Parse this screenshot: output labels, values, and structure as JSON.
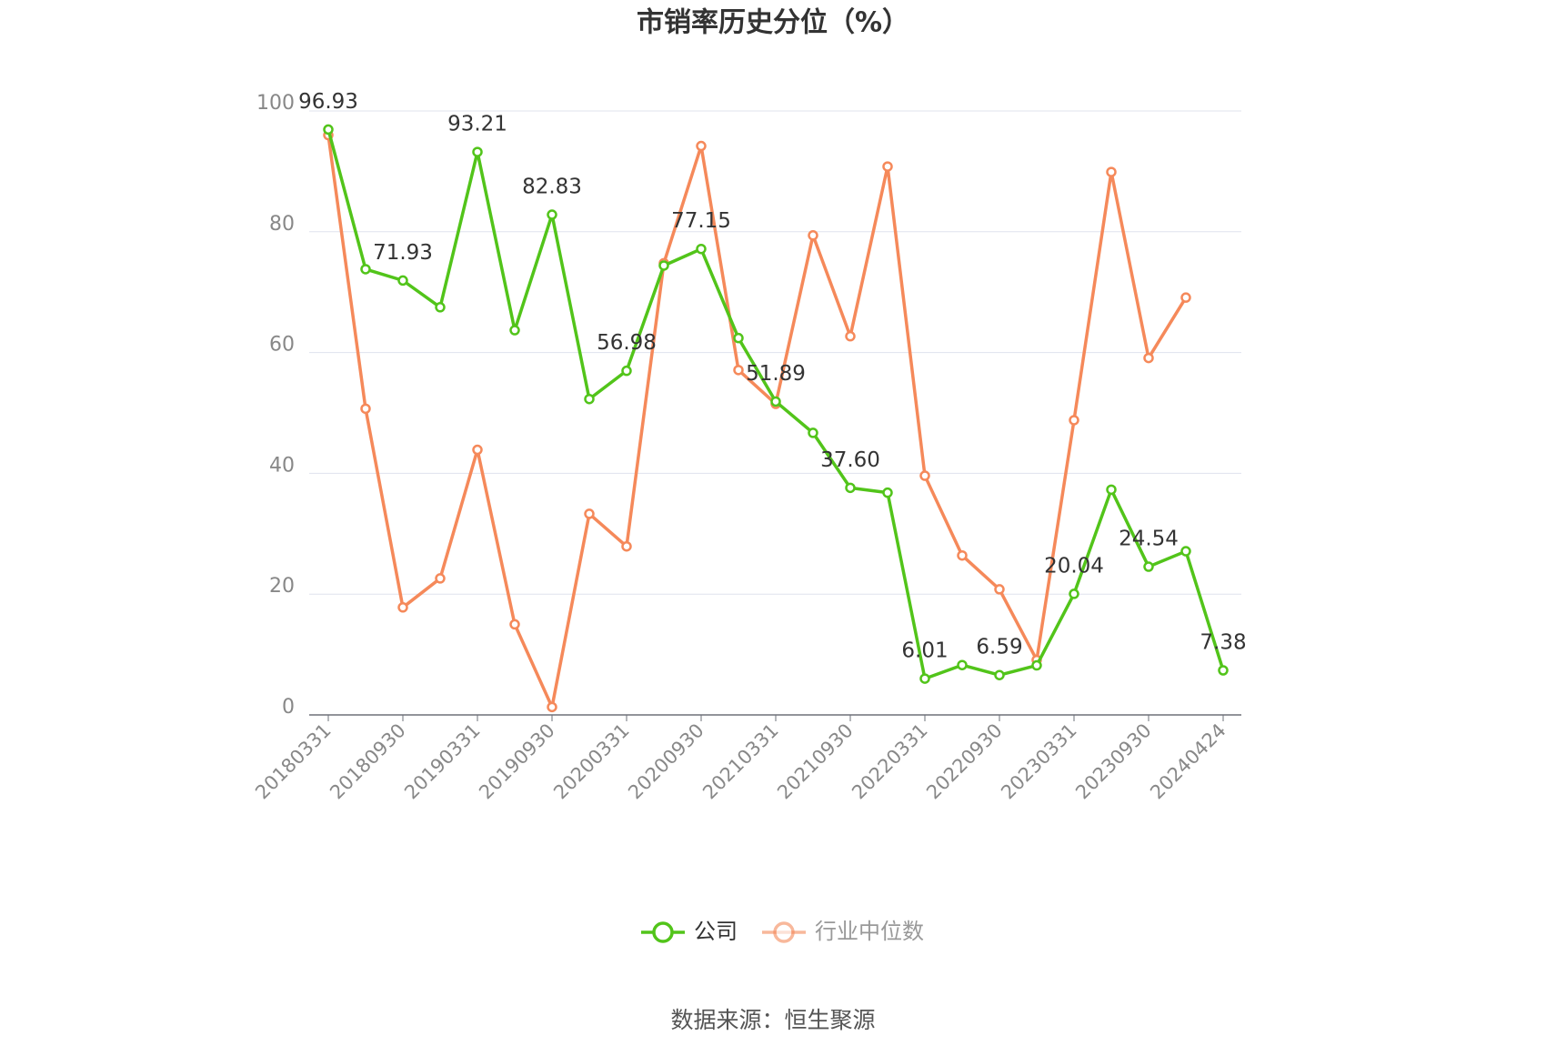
{
  "chart_data": {
    "type": "line",
    "title": "市销率历史分位（%）",
    "source": "数据来源：恒生聚源",
    "categories": [
      "20180331",
      null,
      "20180930",
      null,
      "20190331",
      null,
      "20190930",
      null,
      "20200331",
      null,
      "20200930",
      null,
      "20210331",
      null,
      "20210930",
      null,
      "20220331",
      null,
      "20220930",
      null,
      "20230331",
      null,
      "20230930",
      null,
      "20240424"
    ],
    "series": [
      {
        "name": "公司",
        "color": "#52c41a",
        "values": [
          96.93,
          73.8,
          71.93,
          67.5,
          93.21,
          63.7,
          82.83,
          52.3,
          56.98,
          74.4,
          77.15,
          62.4,
          51.89,
          46.7,
          37.6,
          36.8,
          6.01,
          8.25,
          6.59,
          8.2,
          20.04,
          37.3,
          24.54,
          27.1,
          7.38
        ],
        "value_labels": [
          "96.93",
          null,
          "71.93",
          null,
          "93.21",
          null,
          "82.83",
          null,
          "56.98",
          null,
          "77.15",
          null,
          "51.89",
          null,
          "37.60",
          null,
          "6.01",
          null,
          "6.59",
          null,
          "20.04",
          null,
          "24.54",
          null,
          "7.38"
        ]
      },
      {
        "name": "行业中位数",
        "color": "#f5895a",
        "values": [
          96.0,
          50.7,
          17.8,
          22.6,
          43.9,
          15.0,
          1.3,
          33.3,
          27.9,
          74.8,
          94.2,
          57.1,
          51.5,
          79.4,
          62.7,
          90.8,
          39.6,
          26.4,
          20.8,
          9.1,
          48.8,
          89.9,
          59.1,
          69.1,
          null
        ]
      }
    ],
    "ylim": [
      0,
      100
    ],
    "yticks": [
      0,
      20,
      40,
      60,
      80,
      100
    ],
    "grid": true,
    "legend": "bottom"
  }
}
